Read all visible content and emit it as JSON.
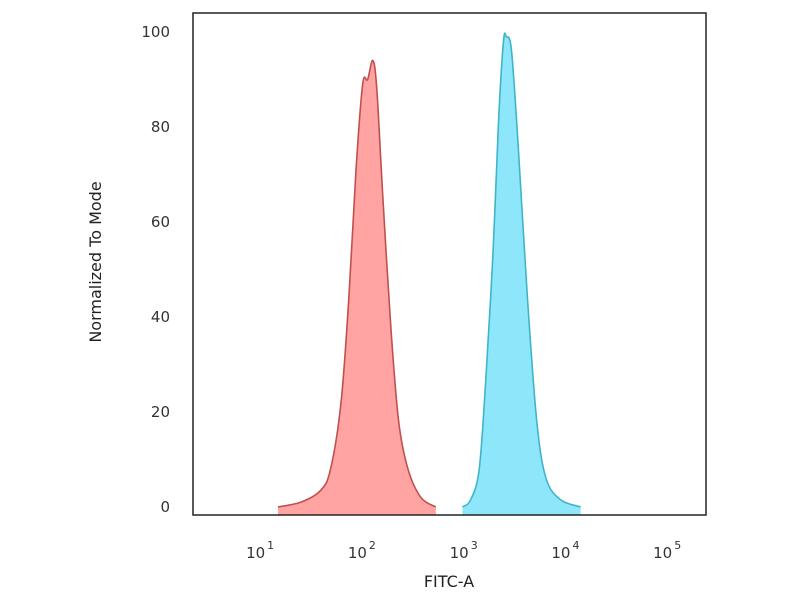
{
  "chart_data": {
    "type": "area",
    "title": "",
    "xlabel": "FITC-A",
    "ylabel": "Normalized To Mode",
    "x_scale": "log",
    "xlim": [
      2,
      220000
    ],
    "ylim": [
      -1.7,
      104
    ],
    "grid": false,
    "x_ticks": [
      {
        "base": "10",
        "exp": "1",
        "value": 10
      },
      {
        "base": "10",
        "exp": "2",
        "value": 100
      },
      {
        "base": "10",
        "exp": "3",
        "value": 1000
      },
      {
        "base": "10",
        "exp": "4",
        "value": 10000
      },
      {
        "base": "10",
        "exp": "5",
        "value": 100000
      }
    ],
    "y_ticks": [
      {
        "label": "0",
        "value": 0
      },
      {
        "label": "20",
        "value": 20
      },
      {
        "label": "40",
        "value": 40
      },
      {
        "label": "60",
        "value": 60
      },
      {
        "label": "80",
        "value": 80
      },
      {
        "label": "100",
        "value": 100
      }
    ],
    "series": [
      {
        "fill": "#ffa3a3",
        "stroke": "#c0504d",
        "x": [
          13.7,
          23,
          36,
          45,
          57,
          68,
          80,
          93,
          104,
          117,
          128,
          147,
          177,
          210,
          259,
          347,
          487
        ],
        "y": [
          0,
          1,
          3.5,
          8,
          22,
          44,
          71,
          89,
          90,
          94,
          88,
          65,
          37,
          18,
          8,
          2,
          0
        ]
      },
      {
        "fill": "#8ee6fb",
        "stroke": "#3fb5c9",
        "x": [
          890,
          1070,
          1300,
          1510,
          1780,
          2010,
          2250,
          2400,
          2700,
          3160,
          3870,
          4780,
          5900,
          8200,
          12900
        ],
        "y": [
          0,
          1.5,
          8,
          27,
          54,
          81,
          98,
          99,
          96,
          75,
          44,
          18,
          6,
          1.5,
          0
        ]
      }
    ]
  }
}
